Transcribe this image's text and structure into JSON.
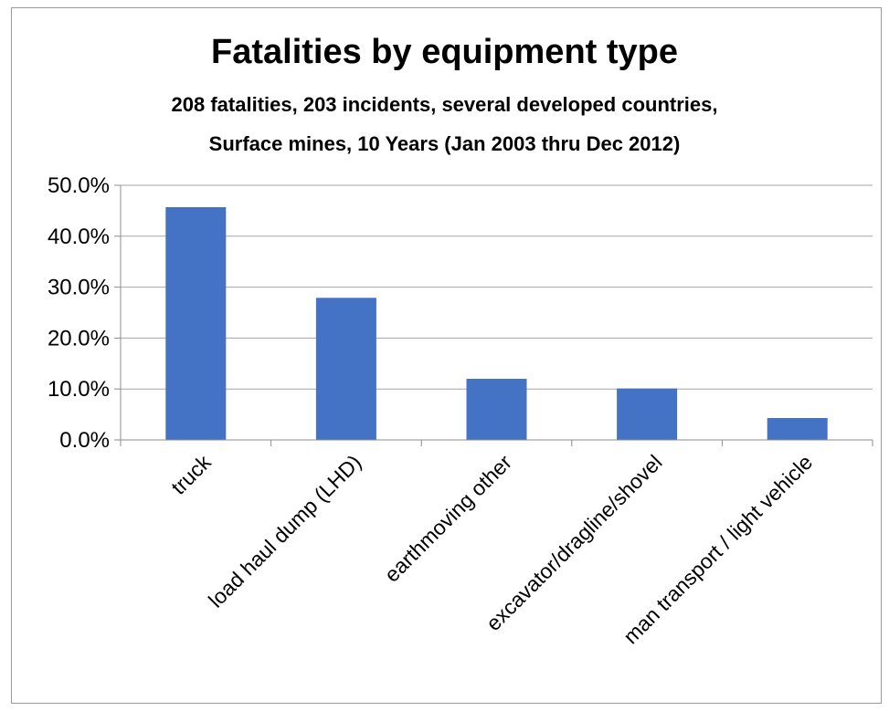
{
  "chart_data": {
    "type": "bar",
    "title": "Fatalities by equipment type",
    "subtitle_lines": [
      "208 fatalities, 203 incidents, several developed countries,",
      "Surface mines, 10 Years (Jan 2003 thru Dec 2012)"
    ],
    "xlabel": "",
    "ylabel": "",
    "categories": [
      "truck",
      "load haul dump (LHD)",
      "earthmoving other",
      "excavator/dragline/shovel",
      "man transport / light vehicle"
    ],
    "values": [
      45.7,
      27.9,
      12.0,
      10.1,
      4.3
    ],
    "value_format": "percent",
    "ylim": [
      0,
      50
    ],
    "yticks": [
      0,
      10,
      20,
      30,
      40,
      50
    ],
    "ytick_labels": [
      "0.0%",
      "10.0%",
      "20.0%",
      "30.0%",
      "40.0%",
      "50.0%"
    ],
    "grid": true,
    "legend": "none",
    "colors": {
      "bar": "#4472C4",
      "grid": "#A6A6A6",
      "axis": "#8C8C8C"
    }
  }
}
